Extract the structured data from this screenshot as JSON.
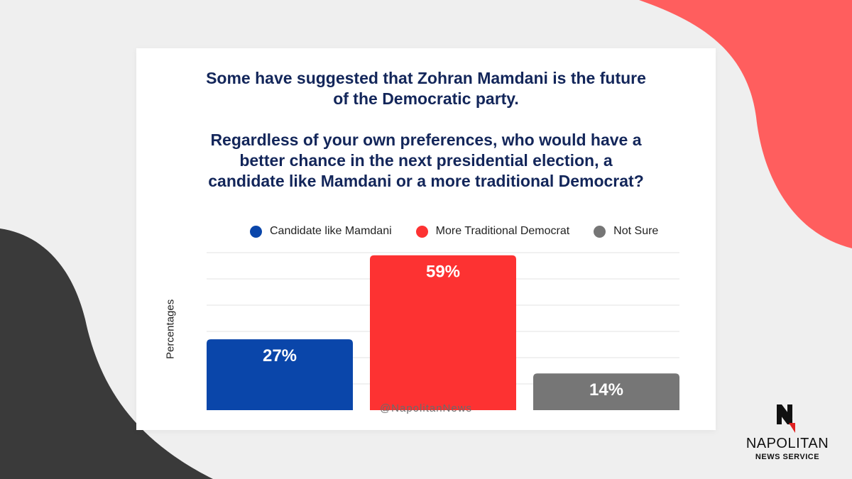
{
  "colors": {
    "accent_coral": "#ff5e5e",
    "dark_shape": "#3a3a3a",
    "title_navy": "#13265a",
    "series_blue": "#0a46aa",
    "series_red": "#fd3232",
    "series_gray": "#767676"
  },
  "question": {
    "line1": "Some have suggested that Zohran Mamdani is the future",
    "line2": "of the Democratic party.",
    "line3": "Regardless of your own preferences, who would have a",
    "line4": "better chance in the next presidential election, a",
    "line5": "candidate like Mamdani or a more traditional Democrat?"
  },
  "chart_data": {
    "type": "bar",
    "categories": [
      "Candidate like Mamdani",
      "More Traditional Democrat",
      "Not Sure"
    ],
    "values": [
      27,
      59,
      14
    ],
    "value_labels": [
      "27%",
      "59%",
      "14%"
    ],
    "colors": [
      "#0a46aa",
      "#fd3232",
      "#767676"
    ],
    "title": "",
    "xlabel": "",
    "ylabel": "Percentages",
    "ylim": [
      0,
      60
    ],
    "grid": true,
    "legend": "top",
    "legend_entries": [
      {
        "name": "Candidate like Mamdani",
        "color": "#0a46aa"
      },
      {
        "name": "More Traditional Democrat",
        "color": "#fd3232"
      },
      {
        "name": "Not Sure",
        "color": "#767676"
      }
    ]
  },
  "footer": {
    "handle": "@NapolitanNews",
    "logo_name": "NAPOLITAN",
    "logo_sub": "NEWS SERVICE"
  }
}
